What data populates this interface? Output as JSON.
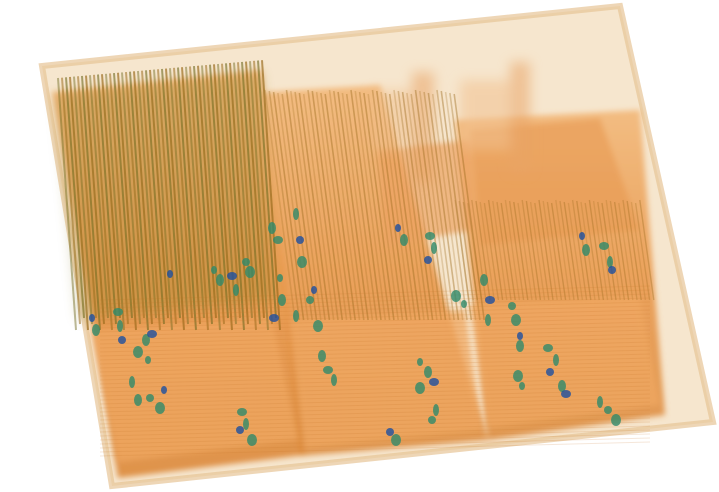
{
  "image": {
    "subject": "volume-rendering",
    "colors": {
      "background": "#ffffff",
      "shell": "#f3dcbb",
      "shell_edge": "#e8c79d",
      "body": "#e9964a",
      "body_dark": "#c8772a",
      "body_light": "#f6c08a",
      "stripe": "#9a6a1c",
      "stripe_dark": "#6f6a22",
      "inclusion": "#2f8a6a",
      "inclusion_core": "#1d4fa0"
    }
  }
}
